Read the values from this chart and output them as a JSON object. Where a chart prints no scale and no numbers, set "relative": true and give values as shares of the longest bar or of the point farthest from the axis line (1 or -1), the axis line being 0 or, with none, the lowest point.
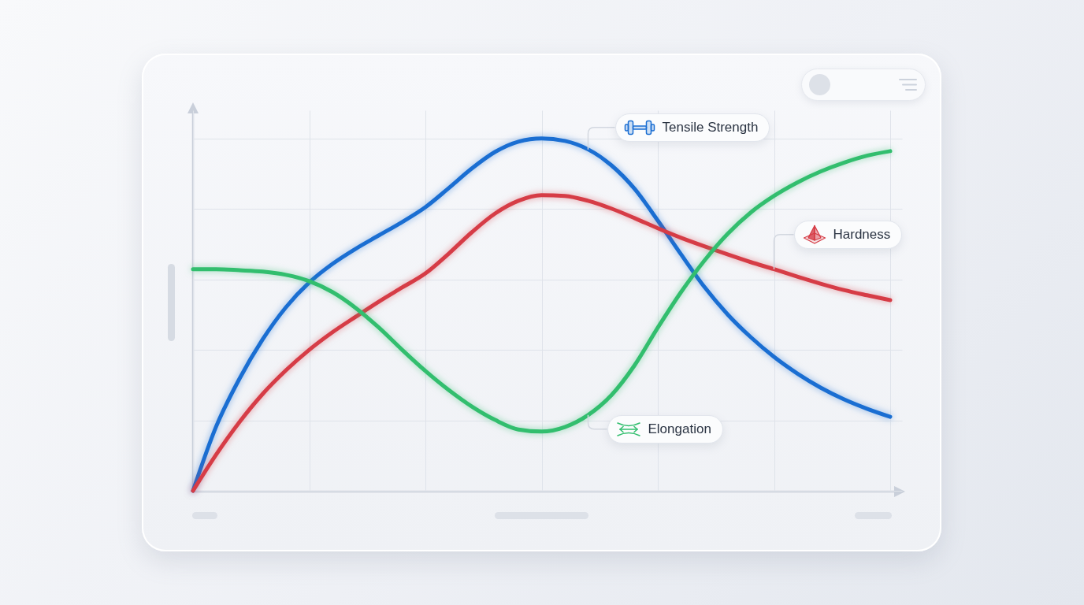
{
  "chart_data": {
    "type": "line",
    "relative": true,
    "legend": "right",
    "grid": true,
    "line_style": "solid",
    "categories": [
      null,
      null,
      null,
      null,
      null,
      null,
      null,
      null,
      null,
      null,
      null,
      null,
      null,
      null,
      null,
      null,
      null,
      null,
      null,
      null,
      null,
      null,
      null,
      null,
      null,
      null,
      null,
      null,
      null,
      null,
      null
    ],
    "series": [
      {
        "name": "Tensile Strength",
        "color": "#1a6ed2",
        "values": [
          0,
          0.183,
          0.318,
          0.43,
          0.521,
          0.591,
          0.644,
          0.687,
          0.725,
          0.763,
          0.805,
          0.859,
          0.915,
          0.962,
          0.991,
          1,
          0.993,
          0.969,
          0.924,
          0.857,
          0.767,
          0.671,
          0.579,
          0.501,
          0.436,
          0.38,
          0.333,
          0.293,
          0.26,
          0.233,
          0.21
        ]
      },
      {
        "name": "Hardness",
        "color": "#d63c46",
        "values": [
          0,
          0.103,
          0.195,
          0.275,
          0.342,
          0.4,
          0.45,
          0.494,
          0.537,
          0.577,
          0.617,
          0.673,
          0.734,
          0.787,
          0.823,
          0.839,
          0.837,
          0.823,
          0.801,
          0.774,
          0.745,
          0.718,
          0.694,
          0.671,
          0.649,
          0.629,
          0.608,
          0.588,
          0.57,
          0.555,
          0.541
        ]
      },
      {
        "name": "Elongation",
        "color": "#32be6e",
        "values": [
          0.629,
          0.629,
          0.626,
          0.622,
          0.613,
          0.595,
          0.564,
          0.519,
          0.463,
          0.4,
          0.34,
          0.286,
          0.239,
          0.201,
          0.174,
          0.168,
          0.181,
          0.215,
          0.271,
          0.356,
          0.463,
          0.564,
          0.653,
          0.729,
          0.79,
          0.837,
          0.875,
          0.906,
          0.931,
          0.951,
          0.964
        ]
      }
    ]
  }
}
